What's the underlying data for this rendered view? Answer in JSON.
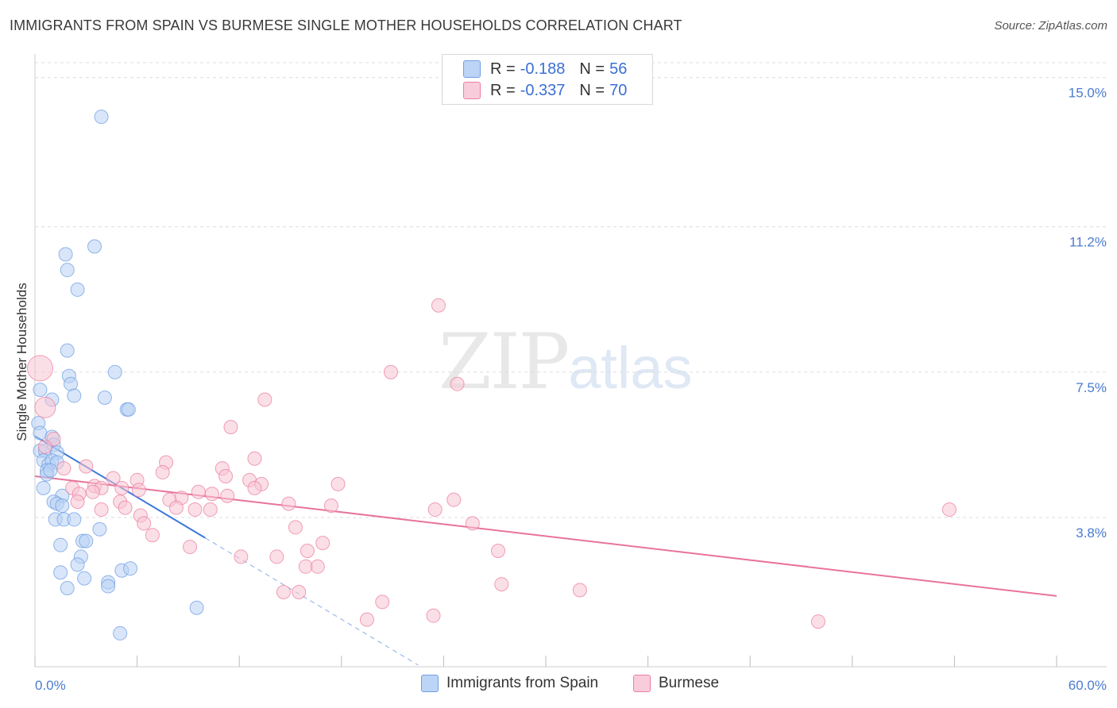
{
  "header": {
    "title": "IMMIGRANTS FROM SPAIN VS BURMESE SINGLE MOTHER HOUSEHOLDS CORRELATION CHART",
    "source": "Source: ZipAtlas.com"
  },
  "watermark": {
    "zip": "ZIP",
    "atlas": "atlas"
  },
  "legend": {
    "rows": [
      {
        "r_label": "R =",
        "r_value": "-0.188",
        "n_label": "N =",
        "n_value": "56",
        "color": "#a9c6f1"
      },
      {
        "r_label": "R =",
        "r_value": "-0.337",
        "n_label": "N =",
        "n_value": "70",
        "color": "#f7b8cb"
      }
    ]
  },
  "bottom_legend": {
    "series1": "Immigrants from Spain",
    "series2": "Burmese"
  },
  "chart_data": {
    "type": "scatter",
    "title": "IMMIGRANTS FROM SPAIN VS BURMESE SINGLE MOTHER HOUSEHOLDS CORRELATION CHART",
    "xlabel": "",
    "ylabel": "Single Mother Households",
    "xlim": [
      0,
      60
    ],
    "ylim": [
      0,
      15.6
    ],
    "x_tick_labels": {
      "left": "0.0%",
      "right": "60.0%"
    },
    "y_ticks": [
      {
        "value": 3.8,
        "label": "3.8%"
      },
      {
        "value": 7.5,
        "label": "7.5%"
      },
      {
        "value": 11.2,
        "label": "11.2%"
      },
      {
        "value": 15.0,
        "label": "15.0%"
      }
    ],
    "series": [
      {
        "name": "Immigrants from Spain",
        "color": "#6f9fe3",
        "fill": "#b9d2f4",
        "trend": {
          "x0": 0,
          "y0": 5.87,
          "x1": 10,
          "y1": 3.28,
          "dash_to_x": 22.5
        },
        "points": [
          [
            3.9,
            14.0
          ],
          [
            1.8,
            10.5
          ],
          [
            3.5,
            10.7
          ],
          [
            1.9,
            10.1
          ],
          [
            2.5,
            9.6
          ],
          [
            1.9,
            8.05
          ],
          [
            4.7,
            7.5
          ],
          [
            2.0,
            7.4
          ],
          [
            2.1,
            7.2
          ],
          [
            2.3,
            6.9
          ],
          [
            0.3,
            7.05
          ],
          [
            4.1,
            6.85
          ],
          [
            1.0,
            6.8
          ],
          [
            5.4,
            6.55
          ],
          [
            5.5,
            6.55
          ],
          [
            0.2,
            6.2
          ],
          [
            0.3,
            5.95
          ],
          [
            1.0,
            5.85
          ],
          [
            0.3,
            5.5
          ],
          [
            0.6,
            5.5
          ],
          [
            1.1,
            5.65
          ],
          [
            1.3,
            5.45
          ],
          [
            0.5,
            5.25
          ],
          [
            0.8,
            5.15
          ],
          [
            1.0,
            5.25
          ],
          [
            1.3,
            5.2
          ],
          [
            0.7,
            5.0
          ],
          [
            0.7,
            4.9
          ],
          [
            0.9,
            5.0
          ],
          [
            0.5,
            4.55
          ],
          [
            1.6,
            4.35
          ],
          [
            1.1,
            4.2
          ],
          [
            1.3,
            4.15
          ],
          [
            1.6,
            4.1
          ],
          [
            1.2,
            3.75
          ],
          [
            1.7,
            3.75
          ],
          [
            2.3,
            3.75
          ],
          [
            3.8,
            3.5
          ],
          [
            2.8,
            3.2
          ],
          [
            3.0,
            3.2
          ],
          [
            1.5,
            3.1
          ],
          [
            2.7,
            2.8
          ],
          [
            2.5,
            2.6
          ],
          [
            5.1,
            2.45
          ],
          [
            5.6,
            2.5
          ],
          [
            1.5,
            2.4
          ],
          [
            2.9,
            2.25
          ],
          [
            4.3,
            2.15
          ],
          [
            4.3,
            2.05
          ],
          [
            1.9,
            2.0
          ],
          [
            9.5,
            1.5
          ],
          [
            5.0,
            0.85
          ]
        ]
      },
      {
        "name": "Burmese",
        "color": "#ec7fa0",
        "fill": "#f7c4d4",
        "trend": {
          "x0": 0,
          "y0": 4.85,
          "x1": 60,
          "y1": 1.8
        },
        "points": [
          [
            0.3,
            7.6
          ],
          [
            0.6,
            6.6
          ],
          [
            23.7,
            9.2
          ],
          [
            20.9,
            7.5
          ],
          [
            24.8,
            7.2
          ],
          [
            13.5,
            6.8
          ],
          [
            11.5,
            6.1
          ],
          [
            1.1,
            5.8
          ],
          [
            0.6,
            5.6
          ],
          [
            12.9,
            5.3
          ],
          [
            7.7,
            5.2
          ],
          [
            11.0,
            5.05
          ],
          [
            3.0,
            5.1
          ],
          [
            1.7,
            5.05
          ],
          [
            7.5,
            4.95
          ],
          [
            11.2,
            4.85
          ],
          [
            6.0,
            4.75
          ],
          [
            4.6,
            4.8
          ],
          [
            12.6,
            4.75
          ],
          [
            13.3,
            4.65
          ],
          [
            17.8,
            4.65
          ],
          [
            3.5,
            4.6
          ],
          [
            3.9,
            4.55
          ],
          [
            6.1,
            4.5
          ],
          [
            5.1,
            4.55
          ],
          [
            2.2,
            4.55
          ],
          [
            12.9,
            4.55
          ],
          [
            3.4,
            4.45
          ],
          [
            2.6,
            4.4
          ],
          [
            9.6,
            4.45
          ],
          [
            10.4,
            4.4
          ],
          [
            11.3,
            4.35
          ],
          [
            8.6,
            4.3
          ],
          [
            7.9,
            4.25
          ],
          [
            2.5,
            4.2
          ],
          [
            24.6,
            4.25
          ],
          [
            5.0,
            4.2
          ],
          [
            14.9,
            4.15
          ],
          [
            17.4,
            4.1
          ],
          [
            5.3,
            4.05
          ],
          [
            8.3,
            4.05
          ],
          [
            9.4,
            4.0
          ],
          [
            10.3,
            4.0
          ],
          [
            3.9,
            4.0
          ],
          [
            23.5,
            4.0
          ],
          [
            53.7,
            4.0
          ],
          [
            6.2,
            3.85
          ],
          [
            6.4,
            3.65
          ],
          [
            25.7,
            3.65
          ],
          [
            15.3,
            3.55
          ],
          [
            6.9,
            3.35
          ],
          [
            16.9,
            3.15
          ],
          [
            9.1,
            3.05
          ],
          [
            16.0,
            2.95
          ],
          [
            27.2,
            2.95
          ],
          [
            12.1,
            2.8
          ],
          [
            14.2,
            2.8
          ],
          [
            15.9,
            2.55
          ],
          [
            16.6,
            2.55
          ],
          [
            27.4,
            2.1
          ],
          [
            32.0,
            1.95
          ],
          [
            14.6,
            1.9
          ],
          [
            15.5,
            1.9
          ],
          [
            20.4,
            1.65
          ],
          [
            23.4,
            1.3
          ],
          [
            19.5,
            1.2
          ],
          [
            46.0,
            1.15
          ]
        ]
      }
    ]
  }
}
